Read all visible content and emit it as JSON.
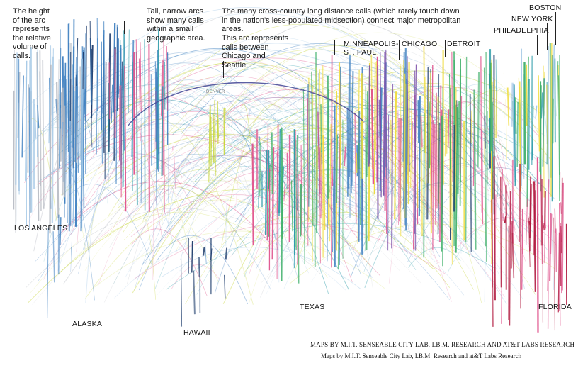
{
  "annotations": {
    "arc_height": "The height of the arc represents the relative volume of calls.",
    "tall_narrow": "Tall, narrow arcs show many calls within a small geographic area.",
    "cross_country": "The many cross-country long distance calls (which rarely touch down in the nation’s less-populated midsection) connect major metropolitan areas.",
    "this_arc": "This arc represents calls between Chicago and Seattle."
  },
  "cities": {
    "boston": "BOSTON",
    "new_york": "NEW YORK",
    "philadelphia": "PHILADELPHIA",
    "minneapolis": "MINNEAPOLIS- ST. PAUL",
    "chicago": "CHICAGO",
    "detroit": "DETROIT",
    "denver": "DENVER",
    "los_angeles": "LOS ANGELES",
    "alaska": "ALASKA",
    "hawaii": "HAWAII",
    "texas": "TEXAS",
    "florida": "FLORIDA"
  },
  "credits": {
    "primary": "MAPS BY M.I.T. SENSEABLE CITY LAB, I.B.M. RESEARCH AND AT&T LABS RESEARCH",
    "secondary": "Maps by M.I.T. Senseable City Lab, I.B.M. Research and at&T Labs Research"
  },
  "palette": {
    "west_blue": "#3d7fc0",
    "navy": "#1b3a6b",
    "teal": "#2a9aa8",
    "pink": "#e0508a",
    "yellow_green": "#c8d63a",
    "yellow": "#f0dc3c",
    "green": "#3fb06a",
    "purple": "#7a4fa8",
    "crimson": "#b0183e",
    "light_blue": "#9cc3e4",
    "gray": "#b8bcc4"
  }
}
